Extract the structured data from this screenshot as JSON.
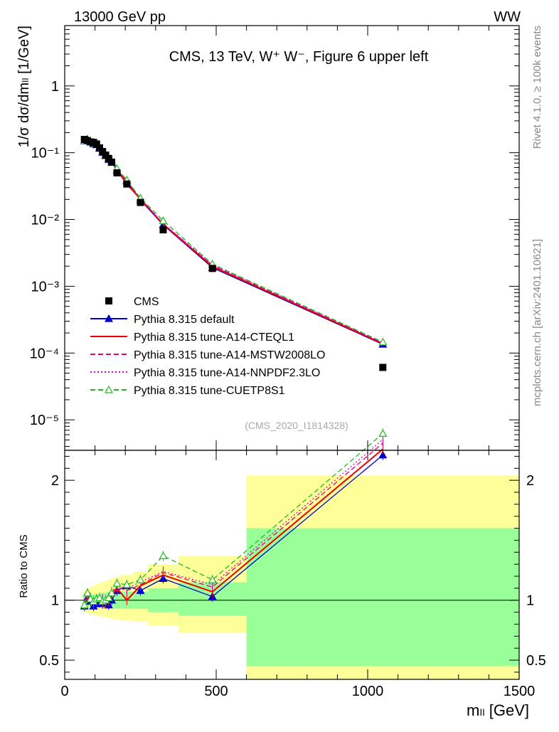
{
  "header": {
    "left": "13000 GeV pp",
    "right": "WW",
    "side_top": "Rivet 4.1.0, ≥ 100k events",
    "side_bottom": "mcplots.cern.ch [arXiv:2401.10621]"
  },
  "chart_data": [
    {
      "type": "line",
      "panel": "main",
      "title": "CMS, 13 TeV, W⁺ W⁻, Figure 6 upper left",
      "ylabel": "1/σ dσ/dmₗₗ [1/GeV]",
      "yscale": "log",
      "ylim": [
        3.5e-06,
        8
      ],
      "xlim": [
        0,
        1500
      ],
      "ytick_labels": [
        "10⁻⁵",
        "10⁻⁴",
        "10⁻³",
        "10⁻²",
        "10⁻¹",
        "1"
      ],
      "analysis_label": "(CMS_2020_I1814328)",
      "legend_position": "lower-left",
      "data": {
        "name": "CMS",
        "x": [
          65,
          75,
          85,
          95,
          105,
          115,
          125,
          135,
          145,
          155,
          172.5,
          205,
          250,
          325,
          487.5,
          1050
        ],
        "y": [
          0.158,
          0.152,
          0.145,
          0.143,
          0.135,
          0.118,
          0.104,
          0.092,
          0.082,
          0.072,
          0.05,
          0.034,
          0.018,
          0.007,
          0.00185,
          6.1e-05
        ]
      },
      "series": [
        {
          "name": "Pythia 8.315 default",
          "color": "#0000cc",
          "style": "solid",
          "marker": "triangle-filled",
          "y": [
            0.15,
            0.155,
            0.144,
            0.136,
            0.131,
            0.116,
            0.101,
            0.09,
            0.079,
            0.072,
            0.054,
            0.038,
            0.0195,
            0.0083,
            0.0019,
            0.000135
          ]
        },
        {
          "name": "Pythia 8.315 tune-A14-CTEQL1",
          "color": "#ee0000",
          "style": "solid",
          "marker": "none",
          "y": [
            0.151,
            0.157,
            0.146,
            0.139,
            0.134,
            0.118,
            0.102,
            0.089,
            0.081,
            0.075,
            0.055,
            0.034,
            0.0202,
            0.0085,
            0.00198,
            0.000138
          ]
        },
        {
          "name": "Pythia 8.315 tune-A14-MSTW2008LO",
          "color": "#ee0066",
          "style": "dashed",
          "marker": "none",
          "y": [
            0.152,
            0.158,
            0.147,
            0.141,
            0.136,
            0.12,
            0.104,
            0.091,
            0.083,
            0.076,
            0.056,
            0.037,
            0.0205,
            0.0086,
            0.00205,
            0.000141
          ]
        },
        {
          "name": "Pythia 8.315 tune-A14-NNPDF2.3LO",
          "color": "#cc00cc",
          "style": "dotted",
          "marker": "none",
          "y": [
            0.153,
            0.159,
            0.148,
            0.142,
            0.137,
            0.121,
            0.105,
            0.092,
            0.084,
            0.077,
            0.057,
            0.038,
            0.0207,
            0.0087,
            0.0021,
            0.000143
          ]
        },
        {
          "name": "Pythia 8.315 tune-CUETP8S1",
          "color": "#22bb22",
          "style": "dashed",
          "marker": "triangle-open",
          "y": [
            0.151,
            0.161,
            0.146,
            0.142,
            0.137,
            0.12,
            0.103,
            0.092,
            0.084,
            0.076,
            0.058,
            0.039,
            0.0209,
            0.0096,
            0.00215,
            0.000146
          ]
        }
      ]
    },
    {
      "type": "line",
      "panel": "ratio",
      "ylabel": "Ratio to CMS",
      "xlabel": "mₗₗ [GeV]",
      "ylim": [
        0.34,
        2.25
      ],
      "xlim": [
        0,
        1500
      ],
      "x_ticks": [
        0,
        500,
        1000,
        1500
      ],
      "y_ticks": [
        0.5,
        1,
        2
      ],
      "x": [
        65,
        75,
        85,
        95,
        105,
        115,
        125,
        135,
        145,
        155,
        172.5,
        205,
        250,
        325,
        487.5,
        1050
      ],
      "bands": {
        "edges": [
          60,
          70,
          80,
          90,
          100,
          110,
          120,
          130,
          140,
          150,
          160,
          185,
          225,
          275,
          375,
          600,
          1500
        ],
        "inner_low": [
          0.95,
          0.95,
          0.95,
          0.95,
          0.95,
          0.95,
          0.94,
          0.94,
          0.93,
          0.93,
          0.93,
          0.93,
          0.93,
          0.9,
          0.87,
          0.45
        ],
        "inner_high": [
          1.05,
          1.05,
          1.05,
          1.05,
          1.05,
          1.05,
          1.06,
          1.06,
          1.07,
          1.07,
          1.07,
          1.07,
          1.07,
          1.1,
          1.15,
          1.6
        ],
        "outer_low": [
          0.9,
          0.89,
          0.88,
          0.88,
          0.87,
          0.87,
          0.86,
          0.86,
          0.85,
          0.85,
          0.84,
          0.83,
          0.82,
          0.79,
          0.73,
          0.34
        ],
        "outer_high": [
          1.08,
          1.1,
          1.11,
          1.12,
          1.13,
          1.14,
          1.15,
          1.16,
          1.17,
          1.18,
          1.19,
          1.21,
          1.24,
          1.3,
          1.37,
          2.04
        ]
      },
      "series": [
        {
          "name": "Pythia 8.315 default",
          "color": "#0000cc",
          "style": "solid",
          "marker": "triangle-filled",
          "y": [
            0.95,
            1.02,
            0.99,
            0.95,
            0.97,
            0.98,
            0.97,
            0.98,
            0.96,
            1.0,
            1.08,
            1.12,
            1.08,
            1.18,
            1.03,
            2.21
          ]
        },
        {
          "name": "Pythia 8.315 tune-A14-CTEQL1",
          "color": "#ee0000",
          "style": "solid",
          "marker": "none",
          "y": [
            0.96,
            1.03,
            1.01,
            0.97,
            0.99,
            1.0,
            0.98,
            0.97,
            0.99,
            1.04,
            1.1,
            1.0,
            1.12,
            1.21,
            1.07,
            2.26
          ]
        },
        {
          "name": "Pythia 8.315 tune-A14-MSTW2008LO",
          "color": "#ee0066",
          "style": "dashed",
          "marker": "none",
          "y": [
            0.96,
            1.04,
            1.01,
            0.98,
            1.0,
            1.01,
            0.99,
            0.99,
            1.0,
            1.05,
            1.11,
            1.08,
            1.13,
            1.23,
            1.11,
            2.31
          ]
        },
        {
          "name": "Pythia 8.315 tune-A14-NNPDF2.3LO",
          "color": "#cc00cc",
          "style": "dotted",
          "marker": "none",
          "y": [
            0.97,
            1.05,
            1.02,
            0.99,
            1.01,
            1.02,
            1.01,
            1.0,
            1.02,
            1.07,
            1.12,
            1.1,
            1.15,
            1.24,
            1.13,
            2.34
          ]
        },
        {
          "name": "Pythia 8.315 tune-CUETP8S1",
          "color": "#22bb22",
          "style": "dashed",
          "marker": "triangle-open",
          "y": [
            0.96,
            1.06,
            1.01,
            0.99,
            1.01,
            1.02,
            0.99,
            1.0,
            1.02,
            1.06,
            1.14,
            1.13,
            1.17,
            1.37,
            1.17,
            2.39
          ]
        }
      ]
    }
  ]
}
